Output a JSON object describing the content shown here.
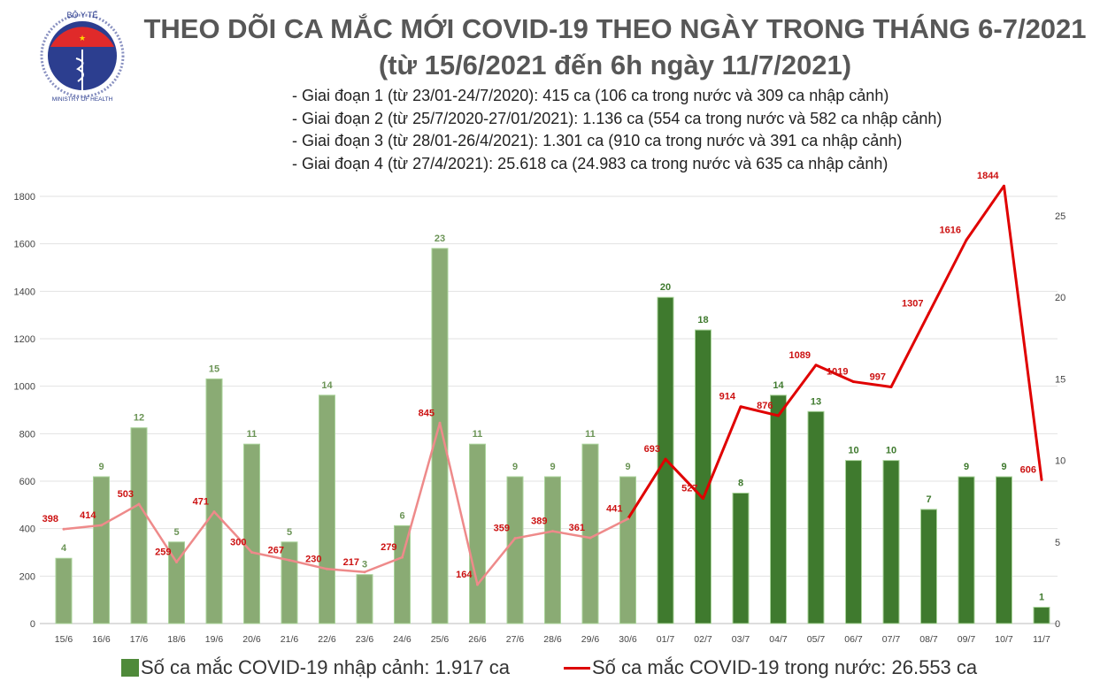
{
  "logo": {
    "top_text": "BỘ Y TẾ",
    "bottom_text": "MINISTRY OF HEALTH"
  },
  "title": [
    "THEO DÕI CA MẮC MỚI COVID-19 THEO NGÀY TRONG THÁNG 6-7/2021",
    "(từ 15/6/2021 đến 6h ngày 11/7/2021)"
  ],
  "notes": [
    "- Giai đoạn 1 (từ 23/01-24/7/2020): 415 ca (106 ca trong nước và 309 ca nhập cảnh)",
    "- Giai đoạn 2 (từ 25/7/2020-27/01/2021): 1.136 ca (554 ca trong nước và 582 ca nhập cảnh)",
    "- Giai đoạn 3 (từ 28/01-26/4/2021): 1.301 ca (910 ca trong nước và 391 ca nhập cảnh)",
    "- Giai đoạn 4 (từ 27/4/2021): 25.618 ca (24.983 ca trong nước và 635 ca nhập cảnh)"
  ],
  "chart_data": {
    "type": "bar+line",
    "categories": [
      "15/6",
      "16/6",
      "17/6",
      "18/6",
      "19/6",
      "20/6",
      "21/6",
      "22/6",
      "23/6",
      "24/6",
      "25/6",
      "26/6",
      "27/6",
      "28/6",
      "29/6",
      "30/6",
      "01/7",
      "02/7",
      "03/7",
      "04/7",
      "05/7",
      "06/7",
      "07/7",
      "08/7",
      "09/7",
      "10/7",
      "11/7"
    ],
    "series": [
      {
        "name": "Số ca mắc COVID-19 nhập cảnh: 1.917 ca",
        "type": "bar",
        "axis": "right",
        "values": [
          4,
          9,
          12,
          5,
          15,
          11,
          5,
          14,
          3,
          6,
          23,
          11,
          9,
          9,
          11,
          9,
          20,
          18,
          8,
          14,
          13,
          10,
          10,
          7,
          9,
          9,
          1
        ],
        "colors": {
          "june": "#8aab74",
          "july": "#3f7a2e"
        }
      },
      {
        "name": "Số ca mắc COVID-19 trong nước: 26.553 ca",
        "type": "line",
        "axis": "left",
        "values": [
          398,
          414,
          503,
          259,
          471,
          300,
          267,
          230,
          217,
          279,
          845,
          164,
          359,
          389,
          361,
          441,
          693,
          527,
          914,
          876,
          1089,
          1019,
          997,
          1307,
          1616,
          1844,
          606
        ],
        "colors": {
          "june": "#ee8a8a",
          "july": "#e00000",
          "label": "#cc1111"
        }
      }
    ],
    "left_axis": {
      "ylim": [
        0,
        1800
      ],
      "ticks": [
        0,
        200,
        400,
        600,
        800,
        1000,
        1200,
        1400,
        1600,
        1800
      ]
    },
    "right_axis": {
      "ticks": [
        0,
        5,
        10,
        15,
        20,
        25
      ]
    },
    "grid": true,
    "legend": "bottom"
  }
}
